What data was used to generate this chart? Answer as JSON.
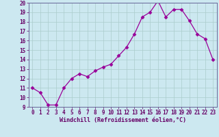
{
  "x": [
    0,
    1,
    2,
    3,
    4,
    5,
    6,
    7,
    8,
    9,
    10,
    11,
    12,
    13,
    14,
    15,
    16,
    17,
    18,
    19,
    20,
    21,
    22,
    23
  ],
  "y": [
    11,
    10.5,
    9.2,
    9.2,
    11,
    12,
    12.5,
    12.2,
    12.8,
    13.2,
    13.5,
    14.4,
    15.3,
    16.7,
    18.5,
    19,
    20.2,
    18.5,
    19.3,
    19.3,
    18.1,
    16.7,
    16.2,
    14
  ],
  "line_color": "#990099",
  "marker": "D",
  "marker_size": 2.5,
  "bg_color": "#cce8f0",
  "grid_color": "#aacccc",
  "xlabel": "Windchill (Refroidissement éolien,°C)",
  "xlabel_color": "#660066",
  "tick_color": "#660066",
  "ylim": [
    9,
    20
  ],
  "yticks": [
    9,
    10,
    11,
    12,
    13,
    14,
    15,
    16,
    17,
    18,
    19,
    20
  ],
  "xticks": [
    0,
    1,
    2,
    3,
    4,
    5,
    6,
    7,
    8,
    9,
    10,
    11,
    12,
    13,
    14,
    15,
    16,
    17,
    18,
    19,
    20,
    21,
    22,
    23
  ]
}
